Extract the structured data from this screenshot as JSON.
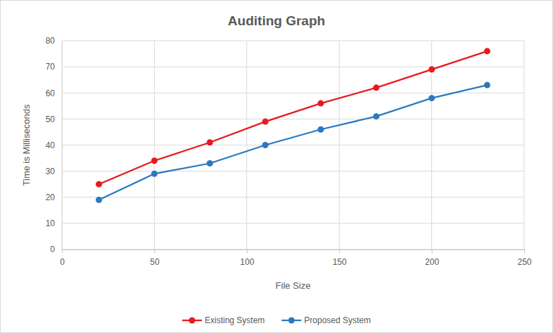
{
  "chart_data": {
    "type": "line",
    "title": "Auditing Graph",
    "x_label": "File Size",
    "y_label": "Time is Milliseconds",
    "x": [
      20,
      50,
      80,
      110,
      140,
      170,
      200,
      230
    ],
    "series": [
      {
        "name": "Existing System",
        "color": "#e8191e",
        "marker": "circle",
        "line_style": "solid",
        "values": [
          25,
          34,
          41,
          49,
          56,
          62,
          69,
          76
        ]
      },
      {
        "name": "Proposed System",
        "color": "#2a78c2",
        "marker": "circle",
        "line_style": "solid",
        "values": [
          19,
          29,
          33,
          40,
          46,
          51,
          58,
          63
        ]
      }
    ],
    "xlim": [
      0,
      250
    ],
    "xticks": [
      0,
      50,
      100,
      150,
      200,
      250
    ],
    "ylim": [
      0,
      80
    ],
    "yticks": [
      0,
      10,
      20,
      30,
      40,
      50,
      60,
      70,
      80
    ],
    "grid": true,
    "legend": "bottom"
  }
}
